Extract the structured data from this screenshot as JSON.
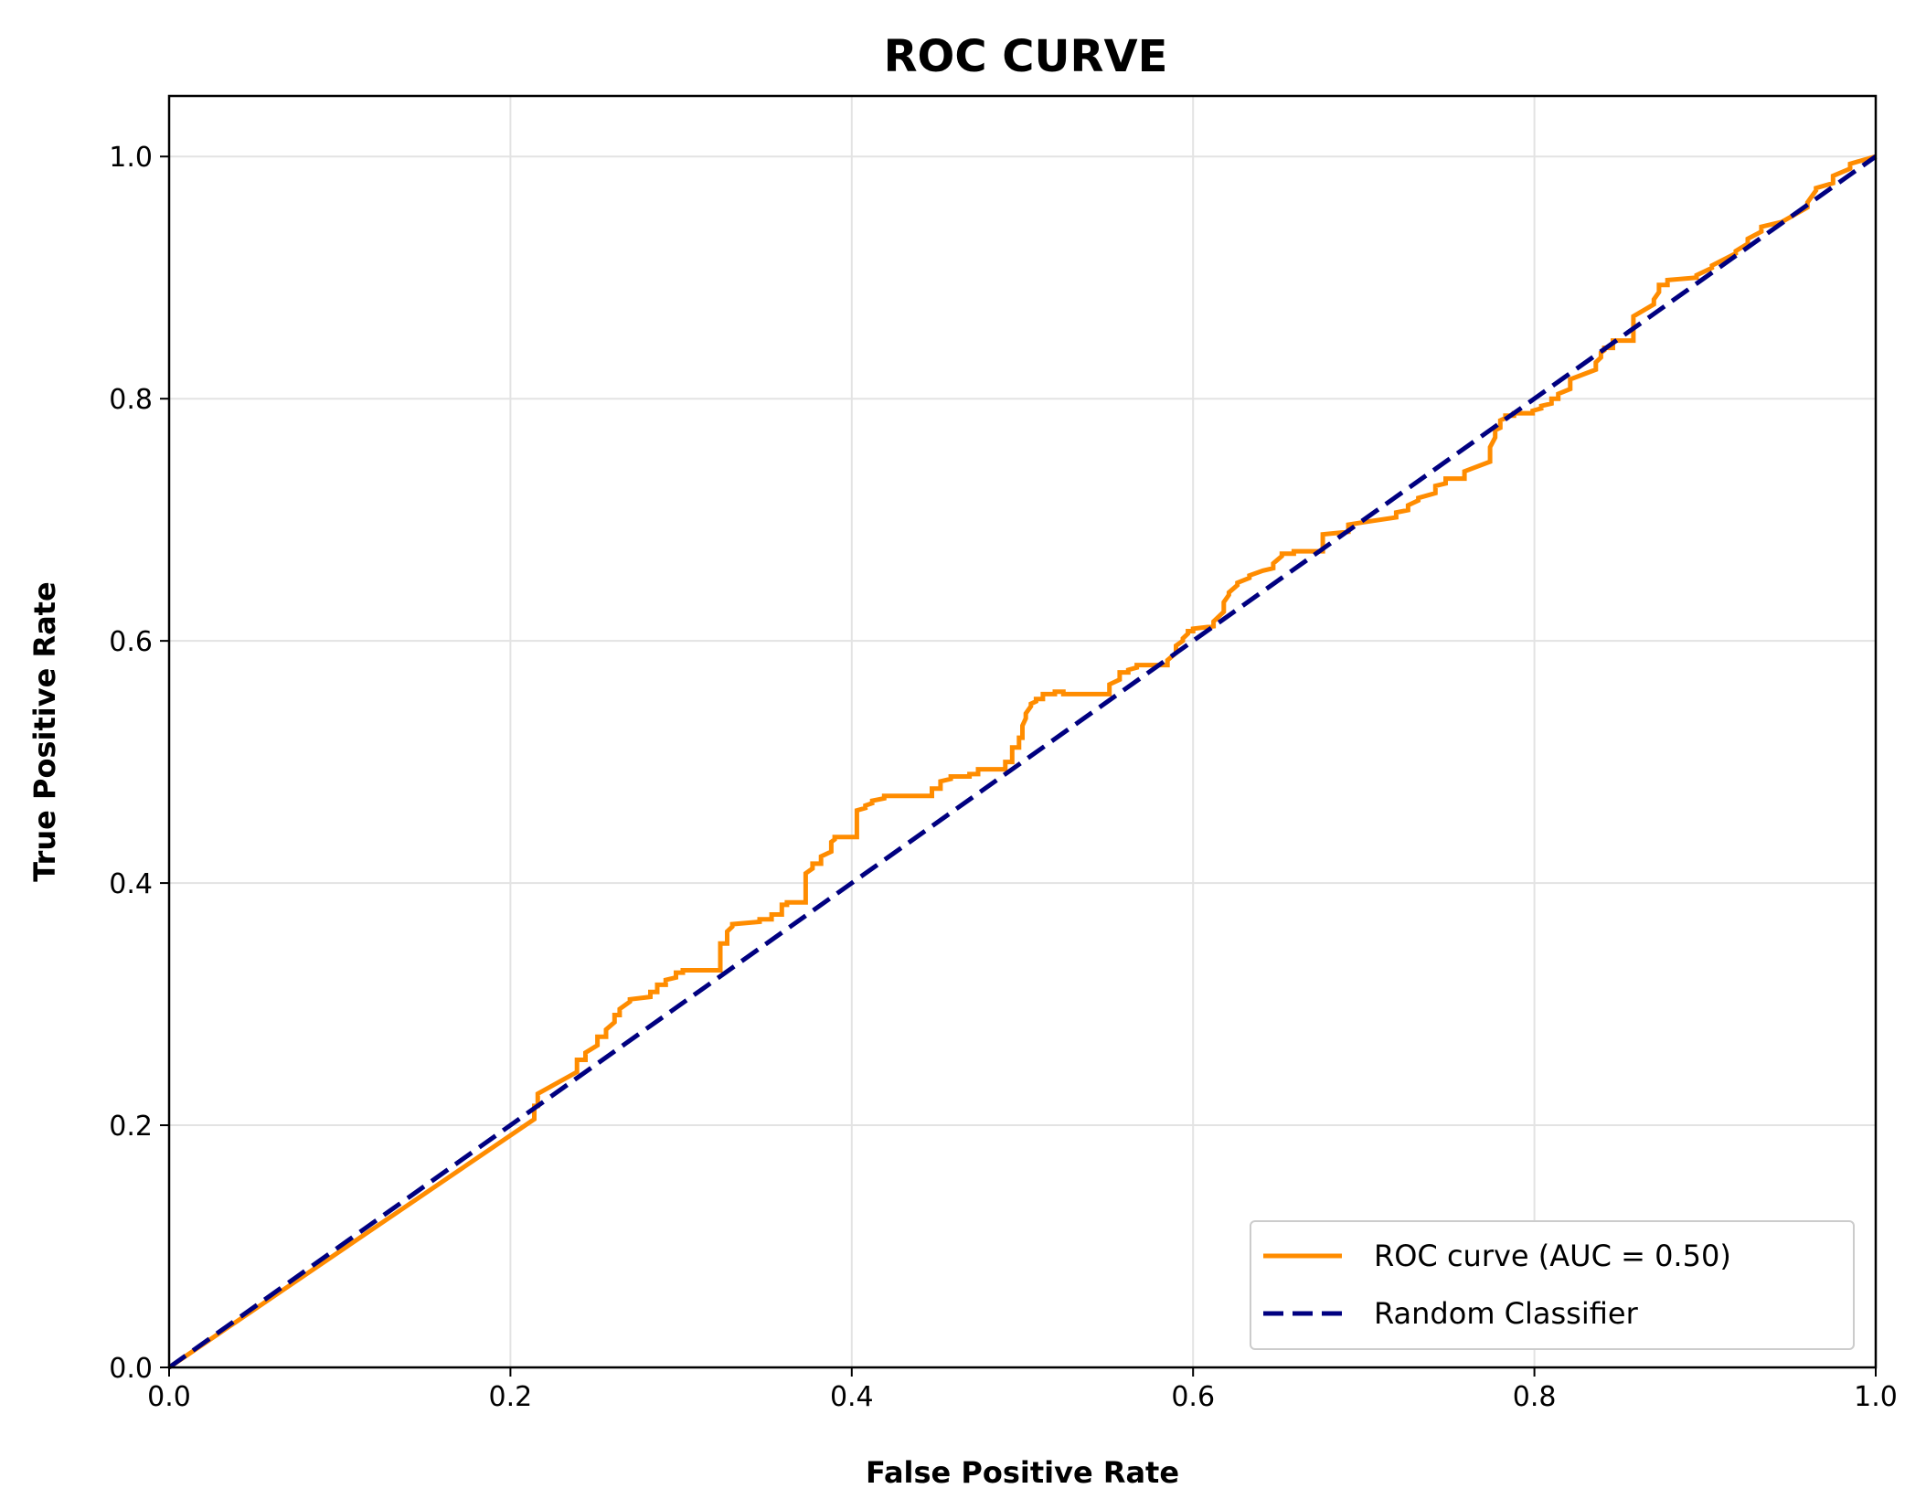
{
  "chart_data": {
    "type": "line",
    "title": "ROC CURVE",
    "xlabel": "False Positive Rate",
    "ylabel": "True Positive Rate",
    "xlim": [
      0.0,
      1.0
    ],
    "ylim": [
      0.0,
      1.05
    ],
    "xticks": [
      "0.0",
      "0.2",
      "0.4",
      "0.6",
      "0.8",
      "1.0"
    ],
    "yticks": [
      "0.0",
      "0.2",
      "0.4",
      "0.6",
      "0.8",
      "1.0"
    ],
    "grid": true,
    "legend_position": "lower-right",
    "series": [
      {
        "name": "ROC curve (AUC = 0.50)",
        "color": "#ff8c00",
        "style": "solid",
        "step": true,
        "x": [
          0.0,
          0.214,
          0.214,
          0.216,
          0.216,
          0.239,
          0.239,
          0.244,
          0.244,
          0.251,
          0.251,
          0.256,
          0.256,
          0.261,
          0.261,
          0.264,
          0.264,
          0.27,
          0.27,
          0.282,
          0.282,
          0.286,
          0.286,
          0.291,
          0.291,
          0.297,
          0.297,
          0.301,
          0.301,
          0.323,
          0.323,
          0.327,
          0.327,
          0.33,
          0.33,
          0.346,
          0.346,
          0.353,
          0.353,
          0.359,
          0.359,
          0.362,
          0.362,
          0.373,
          0.373,
          0.377,
          0.377,
          0.382,
          0.382,
          0.388,
          0.388,
          0.39,
          0.39,
          0.403,
          0.403,
          0.408,
          0.408,
          0.412,
          0.412,
          0.419,
          0.419,
          0.447,
          0.447,
          0.452,
          0.452,
          0.458,
          0.458,
          0.469,
          0.469,
          0.474,
          0.474,
          0.49,
          0.49,
          0.494,
          0.494,
          0.498,
          0.498,
          0.5,
          0.5,
          0.502,
          0.502,
          0.505,
          0.505,
          0.508,
          0.508,
          0.512,
          0.512,
          0.519,
          0.519,
          0.524,
          0.524,
          0.551,
          0.551,
          0.557,
          0.557,
          0.562,
          0.562,
          0.567,
          0.567,
          0.585,
          0.585,
          0.59,
          0.59,
          0.594,
          0.594,
          0.597,
          0.597,
          0.6,
          0.6,
          0.612,
          0.612,
          0.618,
          0.618,
          0.621,
          0.621,
          0.626,
          0.626,
          0.633,
          0.633,
          0.641,
          0.641,
          0.647,
          0.647,
          0.652,
          0.652,
          0.659,
          0.659,
          0.676,
          0.676,
          0.691,
          0.691,
          0.7,
          0.7,
          0.719,
          0.719,
          0.726,
          0.726,
          0.732,
          0.732,
          0.742,
          0.742,
          0.748,
          0.748,
          0.759,
          0.759,
          0.774,
          0.774,
          0.777,
          0.777,
          0.78,
          0.78,
          0.783,
          0.783,
          0.788,
          0.788,
          0.799,
          0.799,
          0.804,
          0.804,
          0.81,
          0.81,
          0.814,
          0.814,
          0.821,
          0.821,
          0.836,
          0.836,
          0.839,
          0.839,
          0.841,
          0.841,
          0.846,
          0.846,
          0.858,
          0.858,
          0.87,
          0.87,
          0.873,
          0.873,
          0.878,
          0.878,
          0.895,
          0.895,
          0.904,
          0.904,
          0.918,
          0.918,
          0.925,
          0.925,
          0.933,
          0.933,
          0.945,
          0.945,
          0.96,
          0.96,
          0.965,
          0.965,
          0.975,
          0.975,
          0.985,
          0.985,
          1.0
        ],
        "y": [
          0.0,
          0.205,
          0.216,
          0.216,
          0.226,
          0.244,
          0.254,
          0.254,
          0.26,
          0.266,
          0.273,
          0.273,
          0.279,
          0.285,
          0.291,
          0.291,
          0.296,
          0.302,
          0.304,
          0.306,
          0.31,
          0.31,
          0.316,
          0.316,
          0.32,
          0.322,
          0.326,
          0.326,
          0.328,
          0.328,
          0.35,
          0.35,
          0.36,
          0.364,
          0.366,
          0.368,
          0.37,
          0.37,
          0.374,
          0.374,
          0.382,
          0.382,
          0.384,
          0.384,
          0.408,
          0.412,
          0.416,
          0.416,
          0.422,
          0.426,
          0.434,
          0.436,
          0.438,
          0.438,
          0.46,
          0.462,
          0.464,
          0.466,
          0.468,
          0.47,
          0.472,
          0.472,
          0.478,
          0.478,
          0.484,
          0.486,
          0.488,
          0.488,
          0.49,
          0.49,
          0.494,
          0.494,
          0.5,
          0.5,
          0.512,
          0.512,
          0.52,
          0.52,
          0.53,
          0.536,
          0.54,
          0.546,
          0.548,
          0.55,
          0.552,
          0.552,
          0.556,
          0.556,
          0.558,
          0.558,
          0.556,
          0.556,
          0.564,
          0.568,
          0.574,
          0.574,
          0.576,
          0.578,
          0.58,
          0.58,
          0.584,
          0.59,
          0.596,
          0.6,
          0.602,
          0.606,
          0.608,
          0.608,
          0.61,
          0.612,
          0.616,
          0.624,
          0.632,
          0.638,
          0.64,
          0.646,
          0.648,
          0.652,
          0.654,
          0.658,
          0.658,
          0.66,
          0.664,
          0.67,
          0.672,
          0.672,
          0.674,
          0.674,
          0.688,
          0.69,
          0.696,
          0.698,
          0.698,
          0.702,
          0.706,
          0.708,
          0.712,
          0.716,
          0.718,
          0.722,
          0.728,
          0.73,
          0.734,
          0.734,
          0.74,
          0.748,
          0.76,
          0.768,
          0.774,
          0.776,
          0.782,
          0.784,
          0.786,
          0.786,
          0.788,
          0.788,
          0.79,
          0.792,
          0.794,
          0.796,
          0.8,
          0.8,
          0.804,
          0.808,
          0.816,
          0.824,
          0.83,
          0.834,
          0.838,
          0.84,
          0.842,
          0.842,
          0.848,
          0.848,
          0.868,
          0.878,
          0.882,
          0.888,
          0.894,
          0.894,
          0.898,
          0.9,
          0.902,
          0.908,
          0.91,
          0.92,
          0.922,
          0.928,
          0.932,
          0.938,
          0.942,
          0.946,
          0.946,
          0.958,
          0.962,
          0.972,
          0.974,
          0.978,
          0.984,
          0.99,
          0.994,
          1.0
        ]
      },
      {
        "name": "Random Classifier",
        "color": "#000080",
        "style": "dashed",
        "x": [
          0.0,
          1.0
        ],
        "y": [
          0.0,
          1.0
        ]
      }
    ]
  }
}
